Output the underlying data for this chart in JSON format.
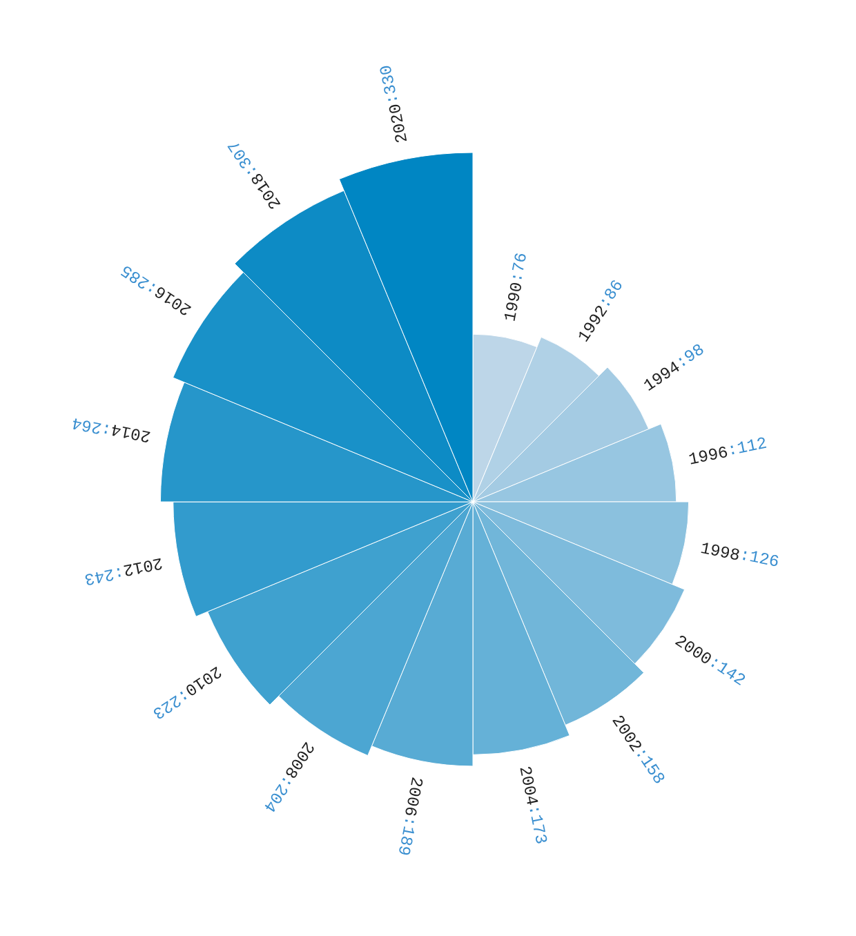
{
  "chart_data": {
    "type": "other",
    "categories": [
      "1990",
      "1992",
      "1994",
      "1996",
      "1998",
      "2000",
      "2002",
      "2004",
      "2006",
      "2008",
      "2010",
      "2012",
      "2014",
      "2016",
      "2018",
      "2020"
    ],
    "values": [
      76,
      86,
      98,
      112,
      126,
      142,
      158,
      173,
      189,
      204,
      223,
      243,
      264,
      285,
      307,
      330
    ],
    "colors": [
      "#bdd6e8",
      "#b0d1e6",
      "#a4cbe3",
      "#97c6e1",
      "#8bc1de",
      "#7ebbdc",
      "#71b6d9",
      "#65b1d7",
      "#58abd4",
      "#4ca6d2",
      "#3fa1cf",
      "#329bcd",
      "#2696ca",
      "#1991c8",
      "#0d8bc5",
      "#0086c3"
    ],
    "value_labels": [
      ":76",
      ":86",
      ":98",
      ":112",
      ":126",
      ":142",
      ":158",
      ":173",
      ":189",
      ":204",
      ":223",
      ":243",
      ":264",
      ":285",
      ":307",
      ":330"
    ]
  }
}
